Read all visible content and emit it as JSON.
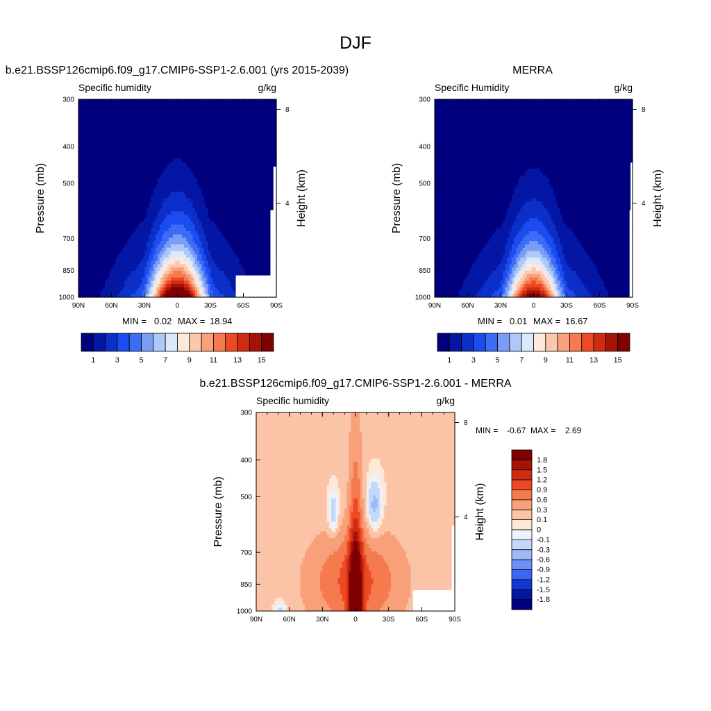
{
  "page": {
    "title": "DJF"
  },
  "colors": {
    "sequential": [
      "#00007f",
      "#0417a4",
      "#0b2fc8",
      "#1c4cf0",
      "#3d6cf7",
      "#7a9df6",
      "#b0c8f8",
      "#dde9fb",
      "#fde9da",
      "#fcc8ad",
      "#f9a07d",
      "#f77a4f",
      "#ed4a23",
      "#cf2c12",
      "#a81206",
      "#7e0000"
    ],
    "diverging": [
      "#00007f",
      "#0417a4",
      "#1238d4",
      "#3a66f3",
      "#6d90f6",
      "#9fb9f8",
      "#c5d8fa",
      "#ecf3fd",
      "#fde8da",
      "#fcc4a6",
      "#f8a07a",
      "#f57a4e",
      "#ed4a23",
      "#cf2c12",
      "#a81206",
      "#7e0000"
    ]
  },
  "chart_data": [
    {
      "type": "heatmap",
      "title": "b.e21.BSSP126cmip6.f09_g17.CMIP6-SSP1-2.6.001 (yrs 2015-2039)",
      "left_label": "Specific humidity",
      "units": "g/kg",
      "ylabel": "Pressure (mb)",
      "y2label": "Height (km)",
      "yticks": [
        "300",
        "400",
        "500",
        "700",
        "850",
        "1000"
      ],
      "y2ticks": [
        "8",
        "4"
      ],
      "xticks": [
        "90N",
        "60N",
        "30N",
        "0",
        "30S",
        "60S",
        "90S"
      ],
      "min_label": "MIN =",
      "min_value": "0.02",
      "max_label": "MAX =",
      "max_value": "18.94",
      "colorbar_labels": [
        "1",
        "3",
        "5",
        "7",
        "9",
        "11",
        "13",
        "15"
      ],
      "levels": [
        1,
        2,
        3,
        4,
        5,
        6,
        7,
        8,
        9,
        10,
        11,
        12,
        13,
        14,
        15
      ]
    },
    {
      "type": "heatmap",
      "title": "MERRA",
      "left_label": "Specific Humidity",
      "units": "g/kg",
      "ylabel": "Pressure (mb)",
      "y2label": "Height (km)",
      "yticks": [
        "300",
        "400",
        "500",
        "700",
        "850",
        "1000"
      ],
      "y2ticks": [
        "8",
        "4"
      ],
      "xticks": [
        "90N",
        "60N",
        "30N",
        "0",
        "30S",
        "60S",
        "90S"
      ],
      "min_label": "MIN =",
      "min_value": "0.01",
      "max_label": "MAX =",
      "max_value": "16.67",
      "colorbar_labels": [
        "1",
        "3",
        "5",
        "7",
        "9",
        "11",
        "13",
        "15"
      ],
      "levels": [
        1,
        2,
        3,
        4,
        5,
        6,
        7,
        8,
        9,
        10,
        11,
        12,
        13,
        14,
        15
      ]
    },
    {
      "type": "heatmap",
      "title": "b.e21.BSSP126cmip6.f09_g17.CMIP6-SSP1-2.6.001 - MERRA",
      "left_label": "Specific humidity",
      "units": "g/kg",
      "ylabel": "Pressure (mb)",
      "y2label": "Height (km)",
      "yticks": [
        "300",
        "400",
        "500",
        "700",
        "850",
        "1000"
      ],
      "y2ticks": [
        "8",
        "4"
      ],
      "xticks": [
        "90N",
        "60N",
        "30N",
        "0",
        "30S",
        "60S",
        "90S"
      ],
      "min_label": "MIN =",
      "min_value": "-0.67",
      "max_label": "MAX =",
      "max_value": "2.69",
      "colorbar_labels": [
        "1.8",
        "1.5",
        "1.2",
        "0.9",
        "0.6",
        "0.3",
        "0.1",
        "0",
        "-0.1",
        "-0.3",
        "-0.6",
        "-0.9",
        "-1.2",
        "-1.5",
        "-1.8"
      ],
      "levels": [
        -1.8,
        -1.5,
        -1.2,
        -0.9,
        -0.6,
        -0.3,
        -0.1,
        0,
        0.1,
        0.3,
        0.6,
        0.9,
        1.2,
        1.5,
        1.8
      ]
    }
  ]
}
